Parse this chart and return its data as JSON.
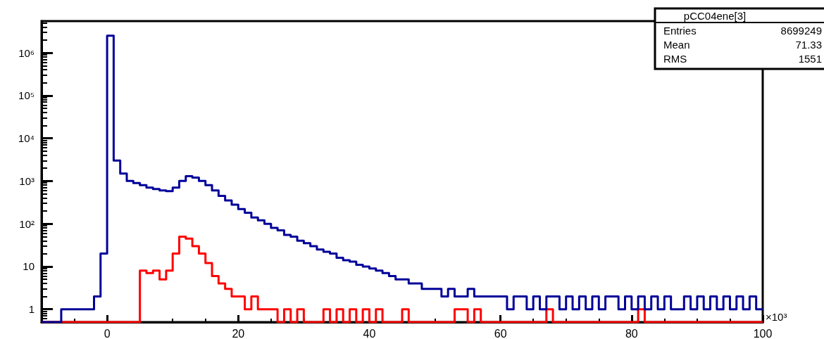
{
  "chart_data": {
    "type": "histogram",
    "xlabel": "×10³",
    "log": "y",
    "grid": false,
    "bins": [
      -10,
      -9,
      -8,
      -7,
      -6,
      -5,
      -4,
      -3,
      -2,
      -1,
      0,
      1,
      2,
      3,
      4,
      5,
      6,
      7,
      8,
      9,
      10,
      11,
      12,
      13,
      14,
      15,
      16,
      17,
      18,
      19,
      20,
      21,
      22,
      23,
      24,
      25,
      26,
      27,
      28,
      29,
      30,
      31,
      32,
      33,
      34,
      35,
      36,
      37,
      38,
      39,
      40,
      41,
      42,
      43,
      44,
      45,
      46,
      47,
      48,
      49,
      50,
      51,
      52,
      53,
      54,
      55,
      56,
      57,
      58,
      59,
      60,
      61,
      62,
      63,
      64,
      65,
      66,
      67,
      68,
      69,
      70,
      71,
      72,
      73,
      74,
      75,
      76,
      77,
      78,
      79,
      80,
      81,
      82,
      83,
      84,
      85,
      86,
      87,
      88,
      89,
      90,
      91,
      92,
      93,
      94,
      95,
      96,
      97,
      98,
      99,
      100
    ],
    "series": [
      {
        "color": "#000099",
        "values": [
          null,
          null,
          null,
          1,
          1,
          1,
          1,
          1,
          2,
          20,
          2500000,
          3000,
          1500,
          1000,
          900,
          800,
          700,
          650,
          600,
          580,
          700,
          1000,
          1300,
          1200,
          1000,
          800,
          600,
          450,
          350,
          280,
          220,
          180,
          140,
          120,
          100,
          80,
          70,
          55,
          50,
          40,
          35,
          30,
          25,
          22,
          20,
          16,
          14,
          13,
          11,
          10,
          9,
          8,
          7,
          6,
          5,
          5,
          4,
          4,
          3,
          3,
          3,
          2,
          3,
          2,
          2,
          3,
          2,
          2,
          2,
          2,
          2,
          1,
          2,
          2,
          1,
          2,
          1,
          2,
          2,
          1,
          2,
          1,
          2,
          1,
          2,
          1,
          2,
          2,
          1,
          2,
          1,
          2,
          1,
          2,
          1,
          2,
          1,
          1,
          2,
          1,
          2,
          1,
          2,
          1,
          2,
          1,
          2,
          1,
          2,
          1
        ]
      },
      {
        "color": "#ff0000",
        "values": [
          null,
          null,
          null,
          null,
          null,
          null,
          null,
          null,
          null,
          null,
          null,
          null,
          null,
          null,
          null,
          8,
          7,
          8,
          5,
          8,
          20,
          50,
          45,
          30,
          20,
          12,
          6,
          4,
          3,
          2,
          2,
          1,
          2,
          1,
          1,
          1,
          null,
          1,
          null,
          1,
          null,
          null,
          null,
          1,
          null,
          1,
          null,
          1,
          null,
          1,
          null,
          1,
          null,
          null,
          null,
          1,
          null,
          null,
          null,
          null,
          null,
          null,
          null,
          1,
          1,
          null,
          1,
          null,
          null,
          null,
          null,
          null,
          null,
          null,
          null,
          null,
          null,
          1,
          null,
          null,
          null,
          null,
          null,
          null,
          null,
          null,
          null,
          null,
          null,
          null,
          null,
          1,
          null,
          null,
          null,
          null,
          null,
          null,
          null,
          null,
          null,
          null,
          null,
          null,
          null,
          null,
          null,
          null,
          null,
          null
        ]
      }
    ],
    "xlim": [
      -10,
      100
    ],
    "xticks": [
      0,
      20,
      40,
      60,
      80,
      100
    ],
    "ylim": [
      0.5,
      5500000
    ],
    "yticks": [
      1,
      10,
      {
        "value": 100,
        "label": "10²"
      },
      {
        "value": 1000,
        "label": "10³"
      },
      {
        "value": 10000,
        "label": "10⁴"
      },
      {
        "value": 100000,
        "label": "10⁵"
      },
      {
        "value": 1000000,
        "label": "10⁶"
      }
    ],
    "annotations": [
      "pCC04ene[3]",
      "Entries",
      "8699249",
      "Mean",
      "71.33",
      "RMS",
      "1551"
    ]
  }
}
